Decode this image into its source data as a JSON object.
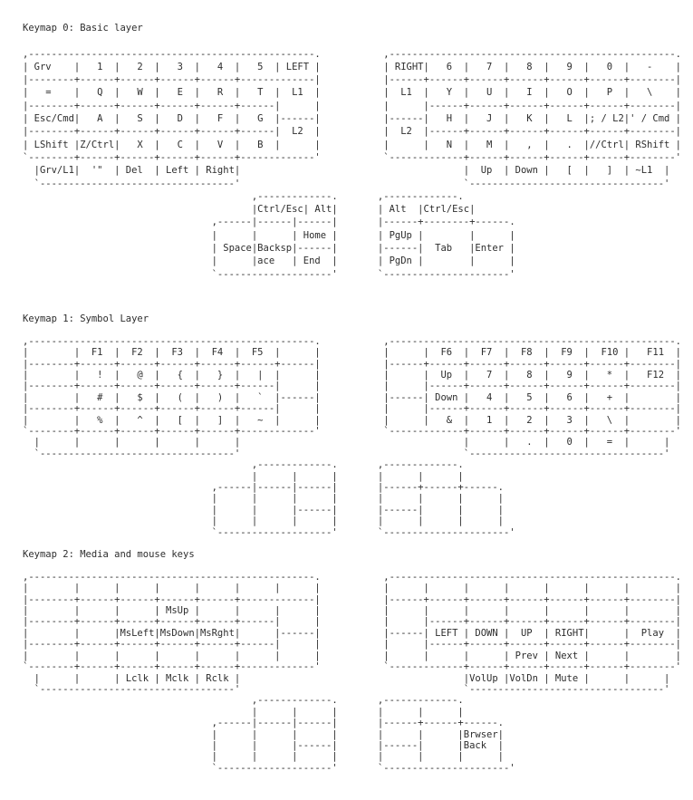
{
  "page": {
    "background_color": "#ffffff",
    "text_color": "#2d2d2d"
  },
  "keymaps": [
    {
      "title": "Keymap 0: Basic layer",
      "art": [
        ",--------------------------------------------------.           ,--------------------------------------------------.",
        "| Grv    |   1  |   2  |   3  |   4  |   5  | LEFT |           | RIGHT|   6  |   7  |   8  |   9  |   0  |   -    |",
        "|--------+------+------+------+------+-------------|           |------+------+------+------+------+------+--------|",
        "|   =    |   Q  |   W  |   E  |   R  |   T  |  L1  |           |  L1  |   Y  |   U  |   I  |   O  |   P  |   \\    |",
        "|--------+------+------+------+------+------|      |           |      |------+------+------+------+------+--------|",
        "| Esc/Cmd|   A  |   S  |   D  |   F  |   G  |------|           |------|   H  |   J  |   K  |   L  |; / L2|' / Cmd |",
        "|--------+------+------+------+------+------|  L2  |           |  L2  |------+------+------+------+------+--------|",
        "| LShift |Z/Ctrl|   X  |   C  |   V  |   B  |      |           |      |   N  |   M  |   ,  |   .  |//Ctrl| RShift |",
        "`--------+------+------+------+------+-------------'           `-------------+------+------+------+------+--------'",
        "  |Grv/L1|  '\"  | Del  | Left | Right|                                       |  Up  | Down |   [  |   ]  | ~L1  |",
        "  `----------------------------------'                                       `----------------------------------'",
        "                                        ,-------------.       ,-------------.",
        "                                        |Ctrl/Esc| Alt|       | Alt  |Ctrl/Esc|",
        "                                 ,------|------|------|       |------+--------+------.",
        "                                 |      |      | Home |       | PgUp |        |      |",
        "                                 | Space|Backsp|------|       |------|  Tab   |Enter |",
        "                                 |      |ace   | End  |       | PgDn |        |      |",
        "                                 `--------------------'       `----------------------'"
      ]
    },
    {
      "title": "Keymap 1: Symbol Layer",
      "art": [
        ",--------------------------------------------------.           ,--------------------------------------------------.",
        "|        |  F1  |  F2  |  F3  |  F4  |  F5  |      |           |      |  F6  |  F7  |  F8  |  F9  |  F10 |   F11  |",
        "|--------+------+------+------+------+------+------|           |------+------+------+------+------+------+--------|",
        "|        |   !  |   @  |   {  |   }  |   |  |      |           |      |  Up  |   7  |   8  |   9  |   *  |   F12  |",
        "|--------+------+------+------+------+------|      |           |      |------+------+------+------+------+--------|",
        "|        |   #  |   $  |   (  |   )  |   `  |------|           |------| Down |   4  |   5  |   6  |   +  |        |",
        "|--------+------+------+------+------+------|      |           |      |------+------+------+------+------+--------|",
        "|        |   %  |   ^  |   [  |   ]  |   ~  |      |           |      |   &  |   1  |   2  |   3  |   \\  |        |",
        "`--------+------+------+------+------+-------------'           `-------------+------+------+------+------+--------'",
        "  |      |      |      |      |      |                                       |      |   .  |   0  |   =  |      |",
        "  `----------------------------------'                                       `----------------------------------'",
        "                                        ,-------------.       ,-------------.",
        "                                        |      |      |       |      |      |",
        "                                 ,------|------|------|       |------+------+------.",
        "                                 |      |      |      |       |      |      |      |",
        "                                 |      |      |------|       |------|      |      |",
        "                                 |      |      |      |       |      |      |      |",
        "                                 `--------------------'       `----------------------'"
      ]
    },
    {
      "title": "Keymap 2: Media and mouse keys",
      "art": [
        ",--------------------------------------------------.           ,--------------------------------------------------.",
        "|        |      |      |      |      |      |      |           |      |      |      |      |      |      |        |",
        "|--------+------+------+------+------+-------------|           |------+------+------+------+------+------+--------|",
        "|        |      |      | MsUp |      |      |      |           |      |      |      |      |      |      |        |",
        "|--------+------+------+------+------+------|      |           |      |------+------+------+------+------+--------|",
        "|        |      |MsLeft|MsDown|MsRght|      |------|           |------| LEFT | DOWN |  UP  | RIGHT|      |  Play  |",
        "|--------+------+------+------+------+------|      |           |      |------+------+------+------+------+--------|",
        "|        |      |      |      |      |      |      |           |      |      |      | Prev | Next |      |        |",
        "`--------+------+------+------+------+-------------'           `-------------+------+------+------+------+--------'",
        "  |      |      | Lclk | Mclk | Rclk |                                       |VolUp |VolDn | Mute |      |      |",
        "  `----------------------------------'                                       `----------------------------------'",
        "                                        ,-------------.       ,-------------.",
        "                                        |      |      |       |      |      |",
        "                                 ,------|------|------|       |------+------+------.",
        "                                 |      |      |      |       |      |      |Brwser|",
        "                                 |      |      |------|       |------|      |Back  |",
        "                                 |      |      |      |       |      |      |      |",
        "                                 `--------------------'       `----------------------'"
      ]
    }
  ]
}
